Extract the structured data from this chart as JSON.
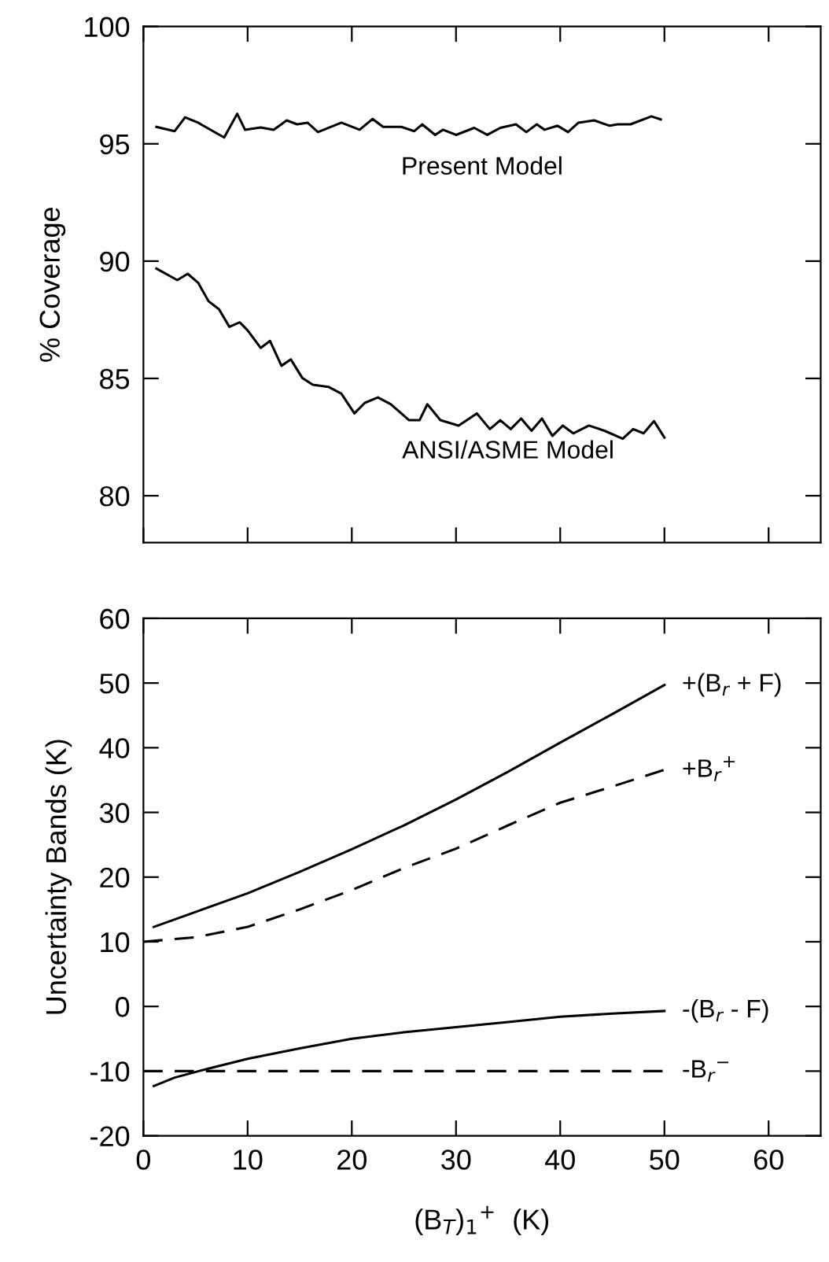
{
  "chart_data": [
    {
      "type": "line",
      "ylabel": "% Coverage",
      "xlim": [
        0,
        65
      ],
      "xticks": [
        0,
        10,
        20,
        30,
        40,
        50,
        60
      ],
      "ylim": [
        78,
        100
      ],
      "yticks": [
        80,
        85,
        90,
        95,
        100
      ],
      "tick_labels": "y",
      "grid": false,
      "legend": false,
      "marker": "none",
      "series": [
        {
          "color": "#000000",
          "line_style": "solid",
          "x": [
            1.25,
            3,
            4,
            5.25,
            7.75,
            9,
            9.75,
            11.25,
            12.5,
            13.75,
            14.75,
            15.75,
            16.75,
            19,
            20.75,
            22,
            23,
            24.75,
            26,
            26.75,
            28,
            28.75,
            30,
            31.75,
            33,
            34.25,
            35.75,
            36.75,
            37.75,
            38.5,
            39.75,
            40.75,
            41.75,
            43.25,
            44.75,
            45.5,
            46.75,
            48.75,
            49.65
          ],
          "values": [
            95.72,
            95.54,
            96.13,
            95.9,
            95.27,
            96.28,
            95.6,
            95.7,
            95.6,
            96.0,
            95.83,
            95.9,
            95.5,
            95.9,
            95.6,
            96.06,
            95.72,
            95.72,
            95.54,
            95.83,
            95.38,
            95.6,
            95.38,
            95.68,
            95.38,
            95.68,
            95.83,
            95.5,
            95.83,
            95.6,
            95.77,
            95.5,
            95.9,
            96.0,
            95.77,
            95.83,
            95.83,
            96.17,
            96.04
          ]
        },
        {
          "color": "#000000",
          "line_style": "solid",
          "x": [
            1.25,
            3.25,
            4.25,
            5.25,
            6.25,
            7.25,
            8.25,
            9.25,
            10,
            11.25,
            12.15,
            13.25,
            14.15,
            15.25,
            16.25,
            17.75,
            19,
            20.25,
            21.25,
            22.5,
            23.75,
            25.5,
            26.5,
            27.25,
            28.5,
            30.25,
            32,
            33.25,
            34.25,
            35.25,
            36.25,
            37.25,
            38.25,
            39.25,
            40.25,
            41.25,
            42.75,
            44.25,
            46,
            47,
            48,
            49,
            50
          ],
          "values": [
            89.68,
            89.19,
            89.46,
            89.08,
            88.29,
            87.95,
            87.2,
            87.39,
            87.05,
            86.3,
            86.6,
            85.54,
            85.81,
            85.02,
            84.73,
            84.64,
            84.35,
            83.51,
            83.96,
            84.19,
            83.9,
            83.22,
            83.22,
            83.9,
            83.22,
            82.99,
            83.51,
            82.84,
            83.22,
            82.84,
            83.29,
            82.77,
            83.29,
            82.55,
            82.99,
            82.66,
            82.99,
            82.77,
            82.43,
            82.84,
            82.66,
            83.18,
            82.48
          ]
        }
      ],
      "annotations": [
        {
          "text": "Present Model",
          "x": 32.5,
          "y": 95.4
        },
        {
          "text": "ANSI/ASME Model",
          "x": 35,
          "y": 83.3
        }
      ]
    },
    {
      "type": "line",
      "xlabel": "(B$_{T}$)$_{1}$$^{+}$  (K)",
      "ylabel": "Uncertainty Bands (K)",
      "xlim": [
        0,
        65
      ],
      "xticks": [
        0,
        10,
        20,
        30,
        40,
        50,
        60
      ],
      "ylim": [
        -20,
        60
      ],
      "yticks": [
        -20,
        -10,
        0,
        10,
        20,
        30,
        40,
        50,
        60
      ],
      "grid": false,
      "legend": false,
      "marker": "none",
      "series": [
        {
          "color": "#000000",
          "line_style": "solid",
          "x": [
            1,
            5,
            10,
            15,
            20,
            25,
            30,
            35,
            40,
            45,
            50
          ],
          "values": [
            12.3,
            14.6,
            17.5,
            20.8,
            24.3,
            28,
            32,
            36.3,
            40.8,
            45.2,
            49.7
          ]
        },
        {
          "color": "#000000",
          "line_style": "dashed",
          "x": [
            0,
            5,
            10,
            15,
            20,
            25,
            30,
            35,
            40,
            45,
            50
          ],
          "values": [
            10,
            10.7,
            12.3,
            15,
            18,
            21.4,
            24.4,
            28,
            31.5,
            34,
            36.6
          ]
        },
        {
          "color": "#000000",
          "line_style": "solid",
          "x": [
            1,
            3,
            6,
            10,
            15,
            20,
            25,
            30,
            35,
            40,
            45,
            50
          ],
          "values": [
            -12.3,
            -11,
            -9.7,
            -8.1,
            -6.5,
            -5,
            -4,
            -3.2,
            -2.4,
            -1.6,
            -1.1,
            -0.7
          ]
        },
        {
          "color": "#000000",
          "line_style": "dashed",
          "x": [
            0,
            50
          ],
          "values": [
            -10,
            -10
          ]
        }
      ],
      "annotations": [
        {
          "text": "+(B$_{r}$ + F)",
          "x": 50,
          "y": 49.7
        },
        {
          "text": "+B$_{r}$$^{+}$",
          "x": 50,
          "y": 36.6
        },
        {
          "text": "-(B$_{r}$ - F)",
          "x": 50,
          "y": -0.7
        },
        {
          "text": "-B$_{r}$$^{−}$",
          "x": 50,
          "y": -10
        }
      ]
    }
  ]
}
